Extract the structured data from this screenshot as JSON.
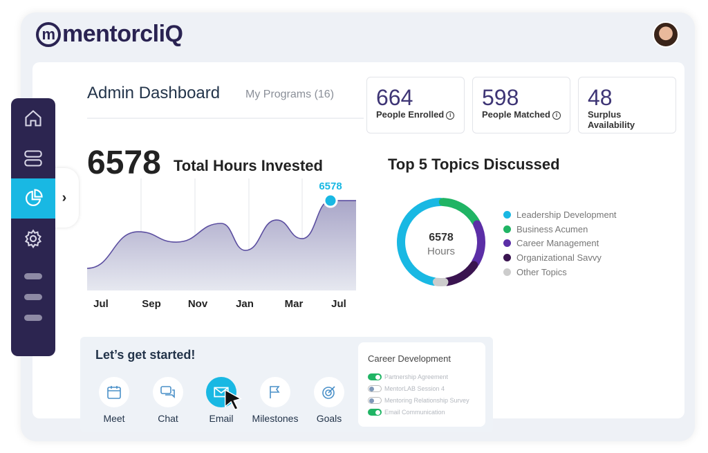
{
  "brand": {
    "name": "mentorcliQ"
  },
  "header": {
    "title": "Admin Dashboard",
    "subtitle": "My Programs (16)"
  },
  "stats": [
    {
      "value": "664",
      "label": "People Enrolled",
      "info": true
    },
    {
      "value": "598",
      "label": "People Matched",
      "info": true
    },
    {
      "value": "48",
      "label": "Surplus Availability",
      "info": false
    }
  ],
  "hours": {
    "total": "6578",
    "label": "Total Hours Invested"
  },
  "chart_data": [
    {
      "type": "area",
      "title": "Total Hours Invested",
      "categories": [
        "Jul",
        "Sep",
        "Nov",
        "Jan",
        "Mar",
        "Jul"
      ],
      "x": [
        0,
        1,
        2,
        3,
        4,
        5,
        6,
        7,
        8
      ],
      "values": [
        1620,
        4300,
        3540,
        4910,
        2935,
        5160,
        3795,
        6578,
        6578
      ],
      "highlight": {
        "label": "6578",
        "value": 6578
      },
      "ylim": [
        0,
        8200
      ]
    },
    {
      "type": "pie",
      "title": "Top 5 Topics Discussed",
      "center_value": "6578",
      "center_label": "Hours",
      "labels": [
        "Leadership Development",
        "Business Acumen",
        "Career Management",
        "Organizational Savvy",
        "Other Topics"
      ],
      "values": [
        48,
        17,
        17,
        14,
        4
      ],
      "colors": [
        "#19b8e3",
        "#20b464",
        "#5b2ea6",
        "#3a1450",
        "#cccccc"
      ]
    }
  ],
  "start": {
    "title": "Let’s get started!",
    "actions": [
      "Meet",
      "Chat",
      "Email",
      "Milestones",
      "Goals"
    ]
  },
  "career": {
    "title": "Career Development",
    "items": [
      {
        "label": "Partnership Agreement",
        "on": true
      },
      {
        "label": "MentorLAB Session 4",
        "on": false
      },
      {
        "label": "Mentoring Relationship Survey",
        "on": false
      },
      {
        "label": "Email Communication",
        "on": true
      }
    ]
  }
}
